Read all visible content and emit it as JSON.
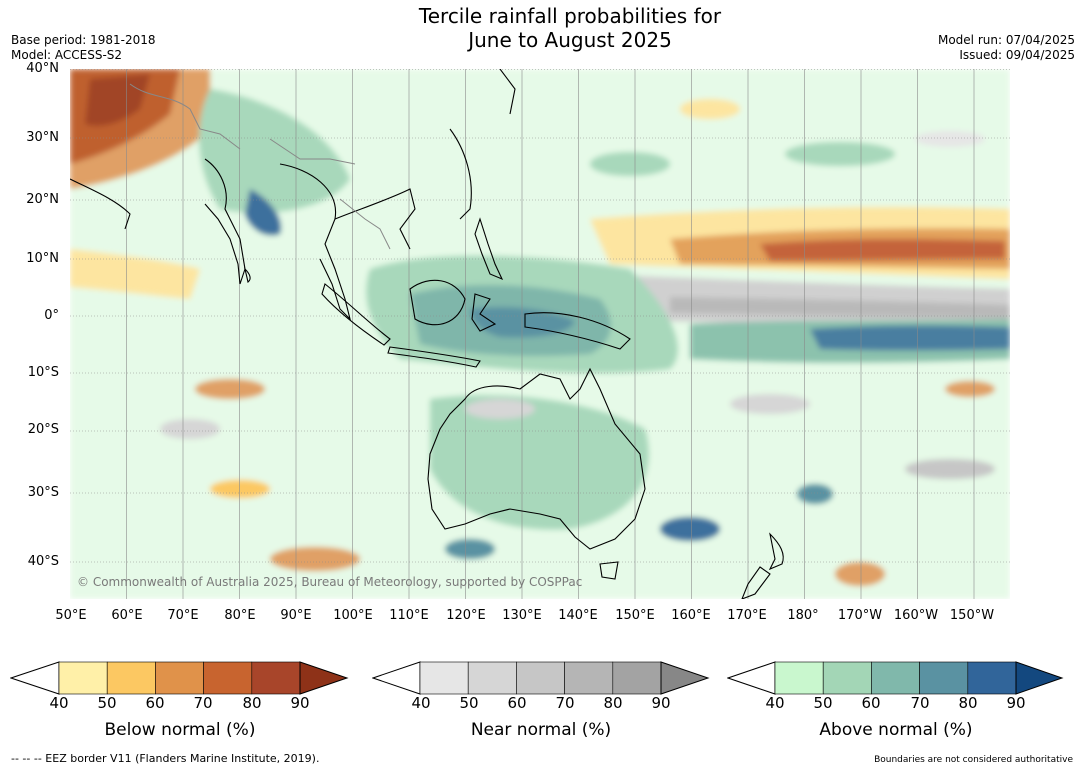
{
  "title": {
    "line1": "Tercile rainfall probabilities for",
    "line2": "June to August 2025"
  },
  "header_left": {
    "base_period": "Base period: 1981-2018",
    "model": "Model: ACCESS-S2"
  },
  "header_right": {
    "model_run": "Model run: 07/04/2025",
    "issued": "Issued: 09/04/2025"
  },
  "map": {
    "lat_labels": [
      "40°N",
      "30°N",
      "20°N",
      "10°N",
      "0°",
      "10°S",
      "20°S",
      "30°S",
      "40°S"
    ],
    "lon_labels": [
      "50°E",
      "60°E",
      "70°E",
      "80°E",
      "90°E",
      "100°E",
      "110°E",
      "120°E",
      "130°E",
      "140°E",
      "150°E",
      "160°E",
      "170°E",
      "180°",
      "170°W",
      "160°W",
      "150°W"
    ],
    "copyright": "© Commonwealth of Australia 2025, Bureau of Meteorology, supported by COSPPac"
  },
  "colorbars": [
    {
      "label": "Below normal (%)",
      "ticks": [
        "40",
        "50",
        "60",
        "70",
        "80",
        "90"
      ],
      "colors": [
        "#fff0a8",
        "#fcc862",
        "#e0924a",
        "#c8642f",
        "#a8452a"
      ],
      "extend_color": "#8e3218"
    },
    {
      "label": "Near normal (%)",
      "ticks": [
        "40",
        "50",
        "60",
        "70",
        "80",
        "90"
      ],
      "colors": [
        "#e6e6e6",
        "#d6d6d6",
        "#c6c6c6",
        "#b5b5b5",
        "#a3a3a3"
      ],
      "extend_color": "#878787"
    },
    {
      "label": "Above normal (%)",
      "ticks": [
        "40",
        "50",
        "60",
        "70",
        "80",
        "90"
      ],
      "colors": [
        "#c9f7ce",
        "#a3d6b6",
        "#80b8ab",
        "#5a92a2",
        "#31659a"
      ],
      "extend_color": "#13487f"
    }
  ],
  "footer": {
    "eez_note": "--  --  -- EEZ border V11 (Flanders Marine Institute, 2019).",
    "disclaimer": "Boundaries are not considered authoritative"
  }
}
